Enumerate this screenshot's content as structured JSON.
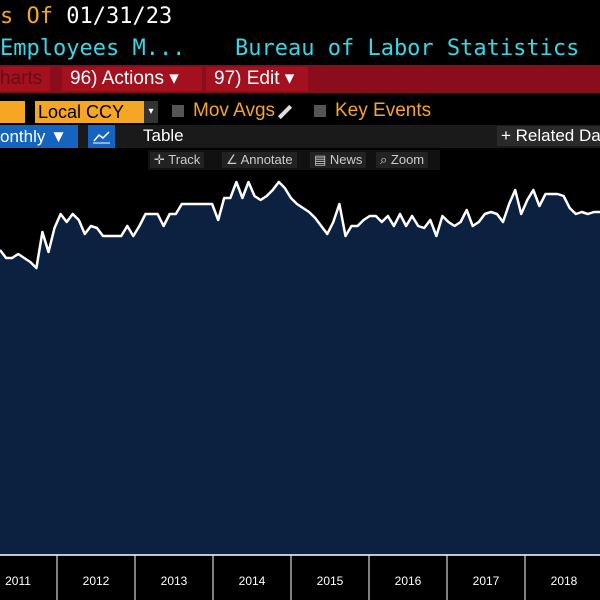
{
  "header": {
    "as_of_label": "s Of",
    "as_of_date": "01/31/23",
    "security": "Employees M...",
    "source": "Bureau of Labor Statistics"
  },
  "menu": {
    "charts": "harts",
    "actions": "96) Actions ▾",
    "edit": "97) Edit ▾"
  },
  "toolbar": {
    "currency": "Local CCY",
    "mov_avgs": "Mov Avgs",
    "key_events": "Key Events",
    "frequency": "onthly ▼",
    "table": "Table",
    "related": "+ Related Da"
  },
  "tools": {
    "track": "Track",
    "annotate": "Annotate",
    "news": "News",
    "zoom": "Zoom"
  },
  "chart_data": {
    "type": "area",
    "color": "#ffffff",
    "fill": "#0c2140",
    "values": [
      305,
      297,
      297,
      301,
      297,
      293,
      287,
      323,
      303,
      327,
      341,
      333,
      341,
      335,
      321,
      329,
      327,
      319,
      319,
      319,
      319,
      329,
      319,
      329,
      341,
      341,
      341,
      329,
      341,
      341,
      351,
      351,
      351,
      351,
      351,
      351,
      335,
      357,
      357,
      373,
      357,
      373,
      359,
      355,
      359,
      365,
      373,
      367,
      357,
      351,
      347,
      343,
      337,
      329,
      321,
      333,
      351,
      319,
      329,
      329,
      335,
      339,
      339,
      333,
      339,
      329,
      341,
      329,
      339,
      329,
      327,
      335,
      319,
      339,
      333,
      329,
      333,
      345,
      329,
      333,
      341,
      343,
      341,
      333,
      351,
      365,
      341,
      355,
      365,
      349,
      361,
      361,
      361,
      359,
      347,
      341,
      343,
      341,
      343,
      343
    ],
    "ylim": [
      0,
      395
    ],
    "xlabels": [
      "2011",
      "2012",
      "2013",
      "2014",
      "2015",
      "2016",
      "2017",
      "2018"
    ]
  }
}
